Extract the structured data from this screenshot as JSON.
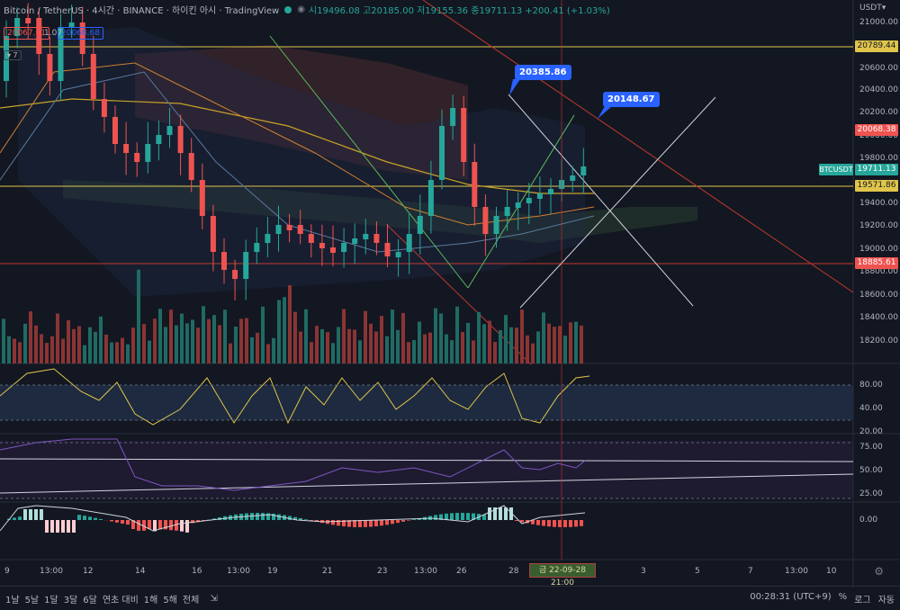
{
  "header": {
    "symbol": "Bitcoin / TetherUS · 4시간 · BINANCE · 하이킨 아시 · TradingView",
    "ohlc": "시19496.08 고20185.00 저19155.36 종19711.13 +200.41 (+1.03%)",
    "pill1": "20067.61",
    "pill_mid": "1.07",
    "pill2": "20068.68",
    "collapse": "▾ 7"
  },
  "axis": {
    "currency": "USDT▾",
    "prices": [
      "21000.00",
      "20800.00",
      "20600.00",
      "20400.00",
      "20200.00",
      "20000.00",
      "19800.00",
      "19400.00",
      "19200.00",
      "19000.00",
      "18800.00",
      "18600.00",
      "18400.00",
      "18200.00"
    ],
    "rsi": [
      "80.00",
      "40.00",
      "20.00"
    ],
    "stoch": [
      "75.00",
      "50.00",
      "25.00"
    ],
    "macd": [
      "0.00"
    ]
  },
  "price_labels": {
    "resistance": "20789.44",
    "bid": "20068.38",
    "ticker": "BTCUSDT",
    "last": "19711.13",
    "support1": "19571.86",
    "support2": "18885.61"
  },
  "callouts": {
    "high": "20385.86",
    "target": "20148.67"
  },
  "xaxis": [
    "9",
    "13:00",
    "12",
    "14",
    "16",
    "13:00",
    "19",
    "21",
    "23",
    "13:00",
    "26",
    "28",
    "3",
    "5",
    "7",
    "13:00",
    "10"
  ],
  "crosshair_date": "금 22-09-28 21:00",
  "bottombar": {
    "timeframes": [
      "1날",
      "5날",
      "1달",
      "3달",
      "6달",
      "연초 대비",
      "1해",
      "5해",
      "전체"
    ],
    "time": "00:28:31 (UTC+9)",
    "pct": "%",
    "log": "로그",
    "auto": "자동"
  },
  "colors": {
    "up": "#26a69a",
    "down": "#ef5350",
    "bg": "#131722"
  }
}
